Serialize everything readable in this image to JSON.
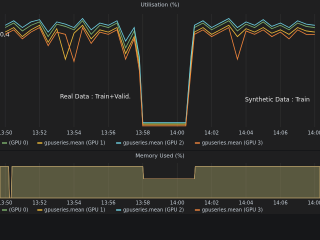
{
  "chart_data": [
    {
      "type": "line",
      "title": "Utilisation (%)",
      "annotations": [
        "0,4",
        "Real Data : Train+Valid.",
        "Synthetic Data : Train"
      ],
      "x": [
        830,
        830.5,
        831,
        831.5,
        832,
        832.5,
        833,
        833.5,
        834,
        834.5,
        835,
        835.5,
        836,
        836.5,
        837,
        837.5,
        837.8,
        838,
        840.5,
        840.8,
        841,
        841.5,
        842,
        842.5,
        843,
        843.5,
        844,
        844.5,
        845,
        845.5,
        846,
        846.5,
        847,
        847.5,
        848
      ],
      "xlim": [
        829.7,
        848.3
      ],
      "ylim": [
        0,
        100
      ],
      "xticks": [
        {
          "value": 830,
          "label": "13:50"
        },
        {
          "value": 832,
          "label": "13:52"
        },
        {
          "value": 834,
          "label": "13:54"
        },
        {
          "value": 836,
          "label": "13:56"
        },
        {
          "value": 838,
          "label": "13:58"
        },
        {
          "value": 840,
          "label": "14:00"
        },
        {
          "value": 842,
          "label": "14:02"
        },
        {
          "value": 844,
          "label": "14:04"
        },
        {
          "value": 846,
          "label": "14:06"
        },
        {
          "value": 848,
          "label": "14:08"
        }
      ],
      "grid": true,
      "series": [
        {
          "name": "(GPU 0)",
          "color": "#7eb26d",
          "values": [
            88,
            92,
            85,
            90,
            93,
            80,
            91,
            89,
            86,
            94,
            82,
            90,
            88,
            92,
            70,
            85,
            60,
            3,
            3,
            60,
            88,
            92,
            86,
            90,
            94,
            85,
            91,
            88,
            93,
            87,
            90,
            86,
            92,
            89,
            88
          ]
        },
        {
          "name": "gpuseries.mean (GPU 1)",
          "color": "#eab839",
          "values": [
            84,
            88,
            80,
            86,
            90,
            75,
            87,
            60,
            83,
            90,
            78,
            86,
            84,
            88,
            65,
            80,
            55,
            2,
            2,
            55,
            84,
            88,
            82,
            86,
            90,
            80,
            87,
            84,
            88,
            83,
            86,
            82,
            88,
            85,
            84
          ]
        },
        {
          "name": "gpuseries.mean (GPU 2)",
          "color": "#6ed0e0",
          "values": [
            90,
            94,
            88,
            93,
            95,
            84,
            93,
            91,
            88,
            96,
            86,
            92,
            90,
            94,
            76,
            88,
            62,
            4,
            4,
            62,
            90,
            94,
            88,
            92,
            96,
            88,
            93,
            90,
            95,
            89,
            92,
            88,
            94,
            91,
            90
          ]
        },
        {
          "name": "gpuseries.mean (GPU 3)",
          "color": "#ef843c",
          "values": [
            82,
            86,
            78,
            84,
            88,
            72,
            84,
            82,
            58,
            88,
            74,
            84,
            82,
            86,
            60,
            78,
            50,
            1,
            1,
            50,
            82,
            86,
            80,
            84,
            88,
            60,
            85,
            82,
            86,
            80,
            84,
            78,
            86,
            82,
            82
          ]
        }
      ]
    },
    {
      "type": "area",
      "title": "Memory Used (%)",
      "x": [
        829.7,
        830.2,
        830.25,
        830.35,
        830.4,
        838,
        838.05,
        841,
        841.05,
        848.3
      ],
      "xlim": [
        829.7,
        848.3
      ],
      "ylim": [
        0,
        100
      ],
      "xticks": [
        {
          "value": 830,
          "label": "13:50"
        },
        {
          "value": 832,
          "label": "13:52"
        },
        {
          "value": 834,
          "label": "13:54"
        },
        {
          "value": 836,
          "label": "13:56"
        },
        {
          "value": 838,
          "label": "13:58"
        },
        {
          "value": 840,
          "label": "14:00"
        },
        {
          "value": 842,
          "label": "14:02"
        },
        {
          "value": 844,
          "label": "14:04"
        },
        {
          "value": 846,
          "label": "14:06"
        },
        {
          "value": 848,
          "label": "14:08"
        }
      ],
      "grid": true,
      "series": [
        {
          "name": "(GPU 0)",
          "color": "#7eb26d",
          "values": [
            90,
            90,
            0,
            0,
            90,
            90,
            55,
            55,
            90,
            90
          ]
        },
        {
          "name": "gpuseries.mean (GPU 1)",
          "color": "#eab839",
          "values": [
            90,
            90,
            0,
            0,
            90,
            90,
            55,
            55,
            90,
            90
          ]
        },
        {
          "name": "gpuseries.mean (GPU 2)",
          "color": "#6ed0e0",
          "values": [
            90,
            90,
            0,
            0,
            90,
            90,
            55,
            55,
            90,
            90
          ]
        },
        {
          "name": "gpuseries.mean (GPU 3)",
          "color": "#ef843c",
          "values": [
            90,
            90,
            0,
            0,
            90,
            90,
            55,
            55,
            90,
            90
          ]
        }
      ]
    }
  ]
}
